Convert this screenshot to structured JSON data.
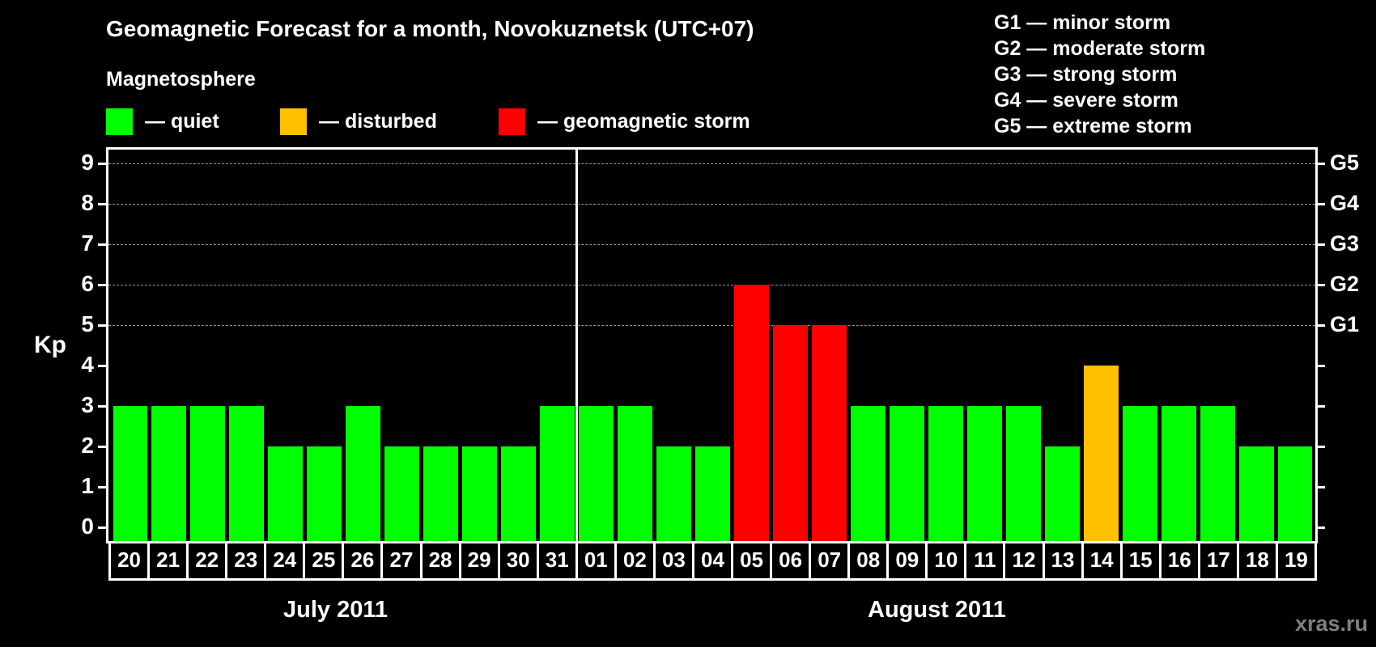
{
  "header": {
    "title": "Geomagnetic Forecast for a month, Novokuznetsk (UTC+07)",
    "subtitle": "Magnetosphere"
  },
  "legend": {
    "items": [
      {
        "label": "— quiet",
        "color": "#00ff00"
      },
      {
        "label": "— disturbed",
        "color": "#ffc000"
      },
      {
        "label": "— geomagnetic storm",
        "color": "#ff0000"
      }
    ]
  },
  "storm_scale": {
    "items": [
      "G1 — minor storm",
      "G2 — moderate storm",
      "G3 — strong storm",
      "G4 — severe storm",
      "G5 — extreme storm"
    ]
  },
  "axis": {
    "ylabel": "Kp",
    "yticks": [
      "0",
      "1",
      "2",
      "3",
      "4",
      "5",
      "6",
      "7",
      "8",
      "9"
    ],
    "right_labels": [
      {
        "kp": 5,
        "label": "G1"
      },
      {
        "kp": 6,
        "label": "G2"
      },
      {
        "kp": 7,
        "label": "G3"
      },
      {
        "kp": 8,
        "label": "G4"
      },
      {
        "kp": 9,
        "label": "G5"
      }
    ]
  },
  "months": [
    {
      "label": "July 2011"
    },
    {
      "label": "August 2011"
    }
  ],
  "watermark": "xras.ru",
  "chart_data": {
    "type": "bar",
    "title": "Geomagnetic Forecast for a month, Novokuznetsk (UTC+07)",
    "subtitle": "Magnetosphere",
    "xlabel": "",
    "ylabel": "Kp",
    "ylim": [
      0,
      9
    ],
    "grid": "dashed horizontal lines at Kp 5–9",
    "legend_position": "top",
    "categories": [
      "20",
      "21",
      "22",
      "23",
      "24",
      "25",
      "26",
      "27",
      "28",
      "29",
      "30",
      "31",
      "01",
      "02",
      "03",
      "04",
      "05",
      "06",
      "07",
      "08",
      "09",
      "10",
      "11",
      "12",
      "13",
      "14",
      "15",
      "16",
      "17",
      "18",
      "19"
    ],
    "month_groups": [
      {
        "label": "July 2011",
        "days": [
          "20",
          "21",
          "22",
          "23",
          "24",
          "25",
          "26",
          "27",
          "28",
          "29",
          "30",
          "31"
        ]
      },
      {
        "label": "August 2011",
        "days": [
          "01",
          "02",
          "03",
          "04",
          "05",
          "06",
          "07",
          "08",
          "09",
          "10",
          "11",
          "12",
          "13",
          "14",
          "15",
          "16",
          "17",
          "18",
          "19"
        ]
      }
    ],
    "values": [
      3,
      3,
      3,
      3,
      2,
      2,
      3,
      2,
      2,
      2,
      2,
      3,
      3,
      3,
      2,
      2,
      6,
      5,
      5,
      3,
      3,
      3,
      3,
      3,
      2,
      4,
      3,
      3,
      3,
      2,
      2
    ],
    "status": [
      "quiet",
      "quiet",
      "quiet",
      "quiet",
      "quiet",
      "quiet",
      "quiet",
      "quiet",
      "quiet",
      "quiet",
      "quiet",
      "quiet",
      "quiet",
      "quiet",
      "quiet",
      "quiet",
      "storm",
      "storm",
      "storm",
      "quiet",
      "quiet",
      "quiet",
      "quiet",
      "quiet",
      "quiet",
      "disturbed",
      "quiet",
      "quiet",
      "quiet",
      "quiet",
      "quiet"
    ],
    "colors": {
      "quiet": "#00ff00",
      "disturbed": "#ffc000",
      "storm": "#ff0000"
    },
    "legend": [
      "— quiet",
      "— disturbed",
      "— geomagnetic storm"
    ],
    "right_axis_labels": {
      "5": "G1",
      "6": "G2",
      "7": "G3",
      "8": "G4",
      "9": "G5"
    },
    "storm_scale_annotation": [
      "G1 — minor storm",
      "G2 — moderate storm",
      "G3 — strong storm",
      "G4 — severe storm",
      "G5 — extreme storm"
    ]
  }
}
